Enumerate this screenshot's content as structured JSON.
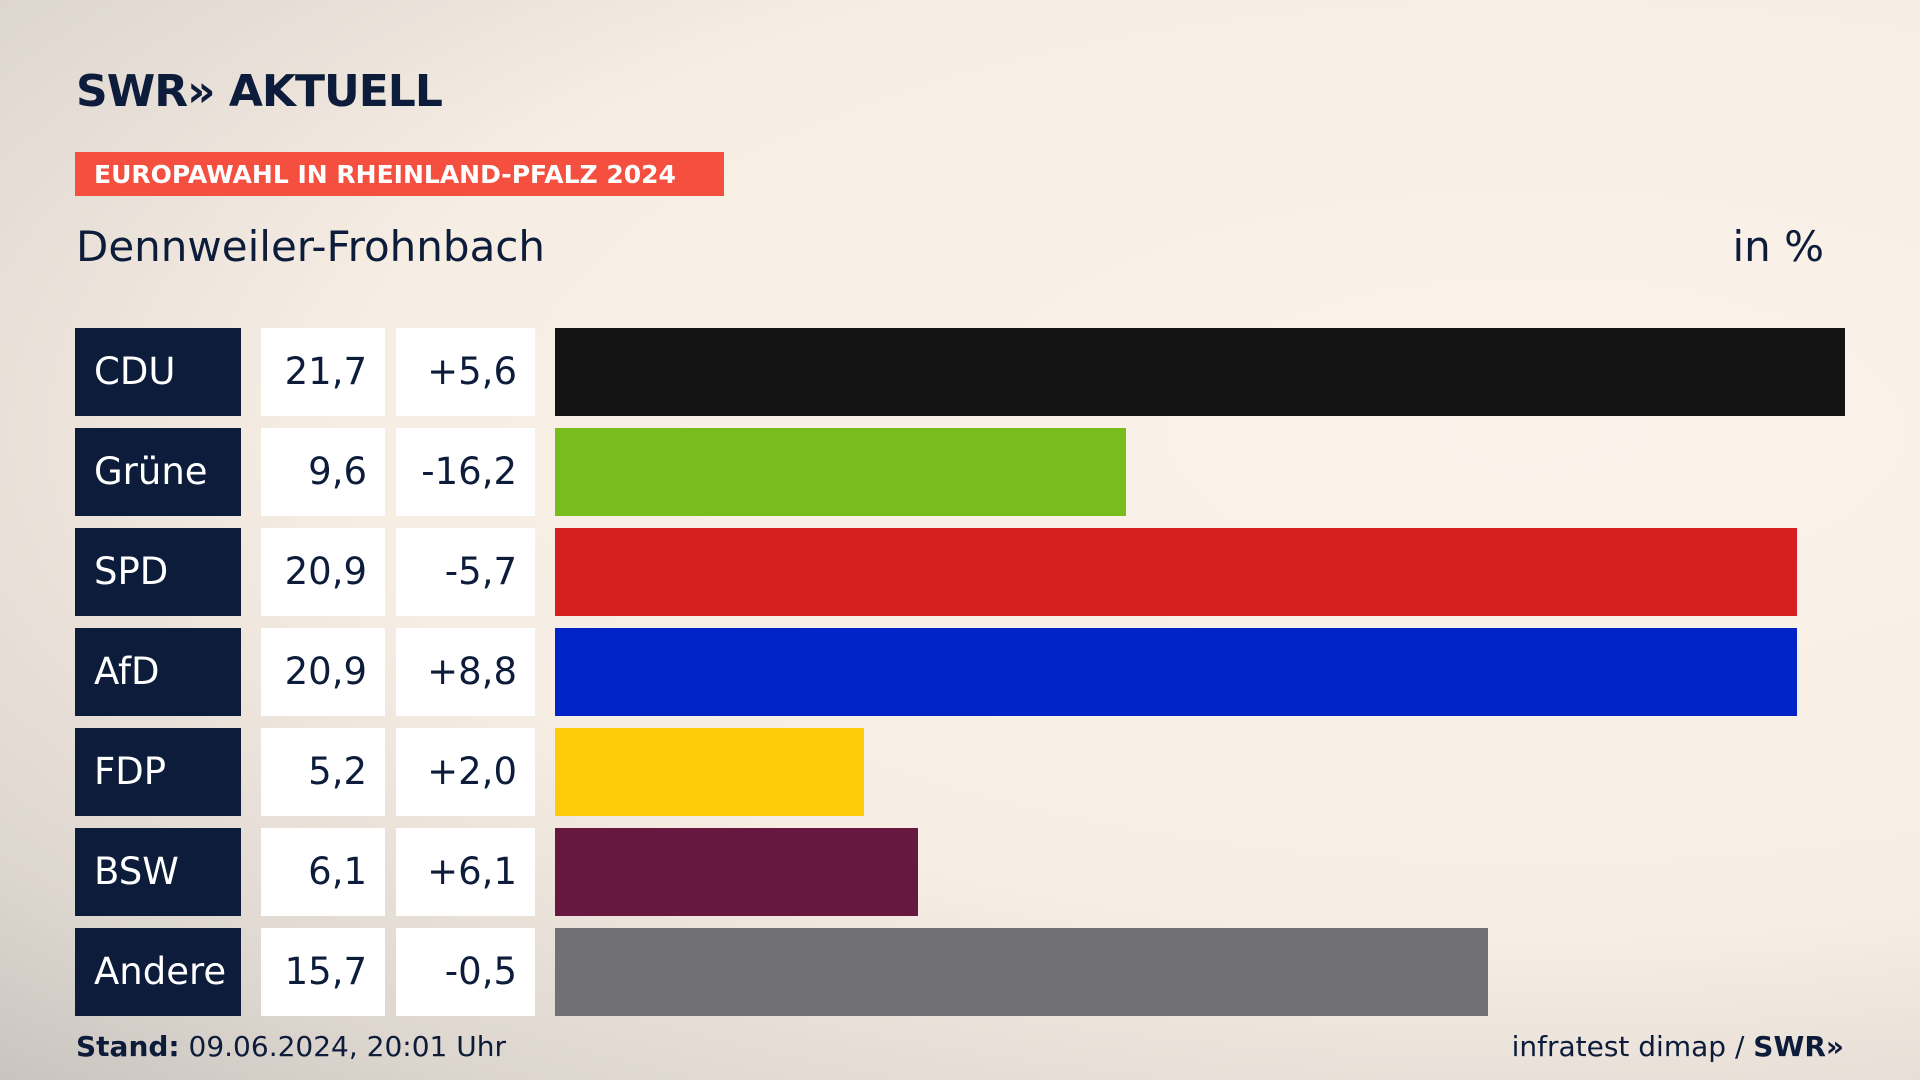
{
  "header": {
    "logo": "SWR» AKTUELL",
    "banner": "EUROPAWAHL IN RHEINLAND-PFALZ 2024"
  },
  "chart_data": {
    "type": "bar",
    "title": "Dennweiler-Frohnbach",
    "unit_label": "in %",
    "categories": [
      "CDU",
      "Grüne",
      "SPD",
      "AfD",
      "FDP",
      "BSW",
      "Andere"
    ],
    "values": [
      21.7,
      9.6,
      20.9,
      20.9,
      5.2,
      6.1,
      15.7
    ],
    "value_labels": [
      "21,7",
      "9,6",
      "20,9",
      "20,9",
      "5,2",
      "6,1",
      "15,7"
    ],
    "change_labels": [
      "+5,6",
      "-16,2",
      "-5,7",
      "+8,8",
      "+2,0",
      "+6,1",
      "-0,5"
    ],
    "colors": [
      "#141414",
      "#79bd1c",
      "#d61f1f",
      "#0024c8",
      "#ffcc0a",
      "#671840",
      "#717173"
    ],
    "xlim": [
      0,
      21.7
    ]
  },
  "footer": {
    "stand_label": "Stand:",
    "stand_value": "09.06.2024, 20:01 Uhr",
    "source": "infratest dimap /",
    "source_logo": "SWR»"
  }
}
